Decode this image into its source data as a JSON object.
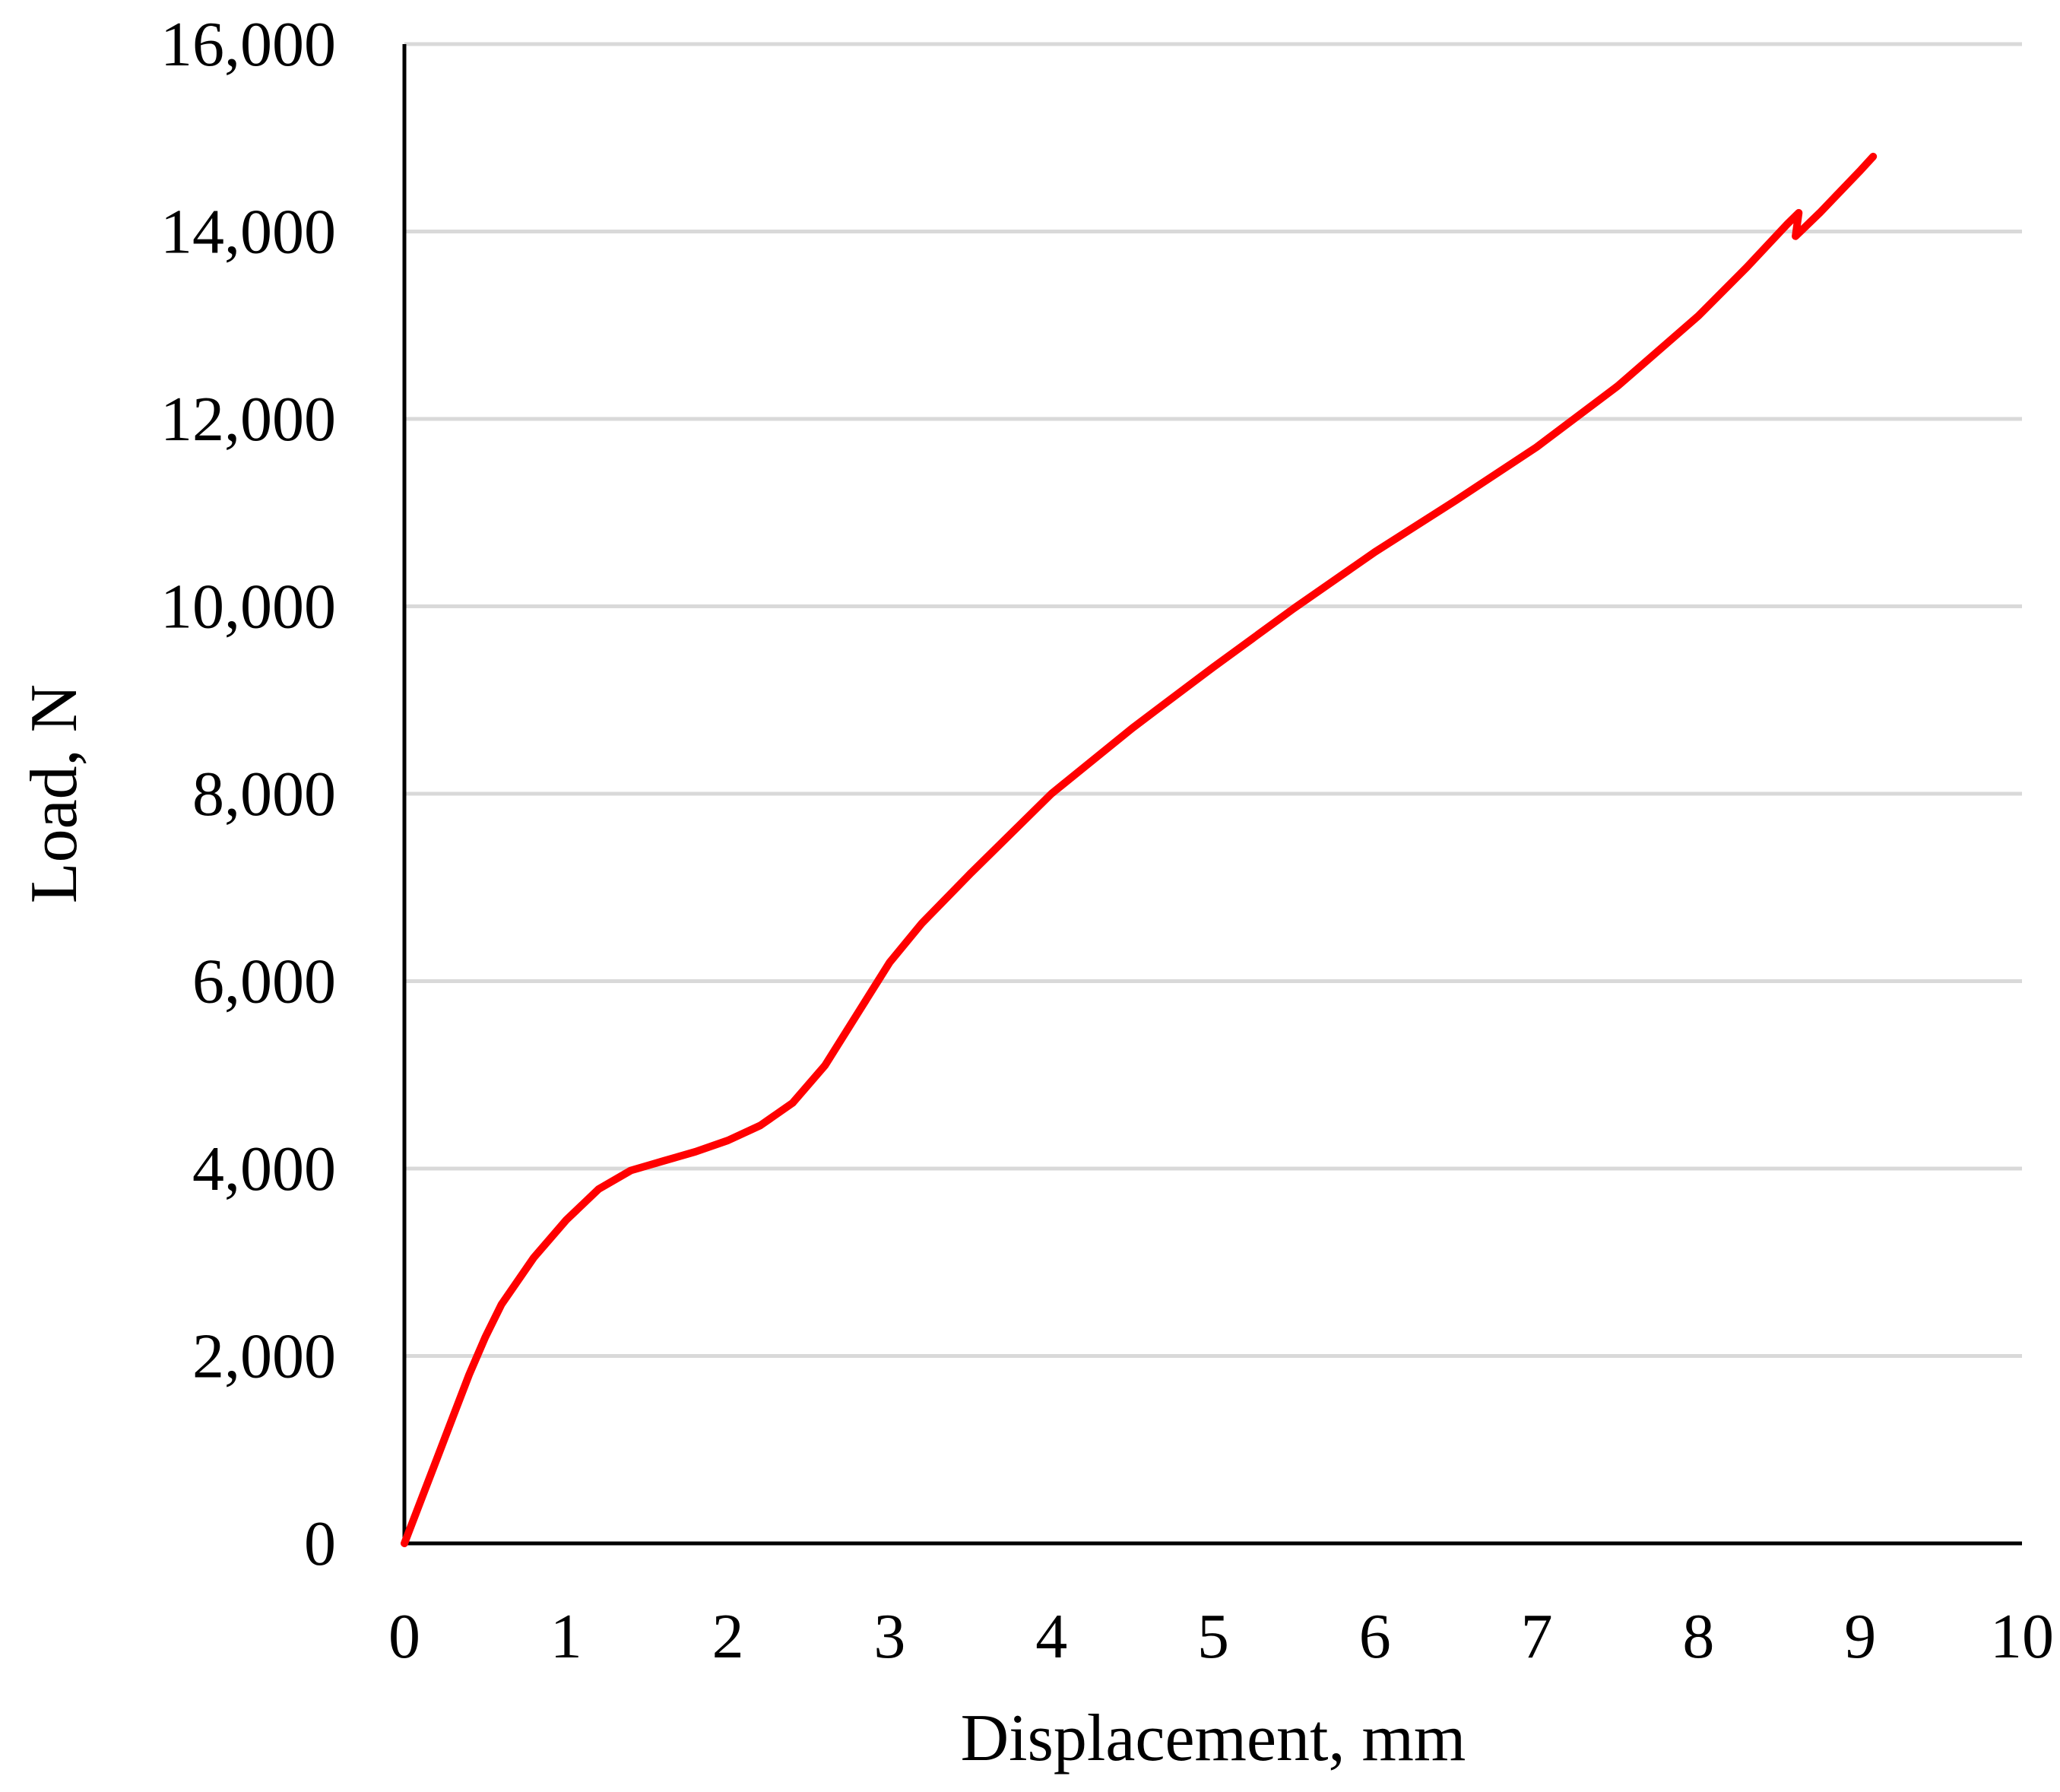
{
  "chart_data": {
    "type": "line",
    "title": "",
    "xlabel": "Displacement, mm",
    "ylabel": "Load, N",
    "xlim": [
      0,
      10
    ],
    "ylim": [
      0,
      16000
    ],
    "x_ticks": [
      "0",
      "1",
      "2",
      "3",
      "4",
      "5",
      "6",
      "7",
      "8",
      "9",
      "10"
    ],
    "y_ticks": [
      "0",
      "2,000",
      "4,000",
      "6,000",
      "8,000",
      "10,000",
      "12,000",
      "14,000",
      "16,000"
    ],
    "x_tick_values": [
      0,
      1,
      2,
      3,
      4,
      5,
      6,
      7,
      8,
      9,
      10
    ],
    "y_tick_values": [
      0,
      2000,
      4000,
      6000,
      8000,
      10000,
      12000,
      14000,
      16000
    ],
    "grid": "horizontal",
    "legend": "none",
    "colors": {
      "line": "#ff0000",
      "grid": "#d9d9d9",
      "axis": "#000000"
    },
    "series": [
      {
        "x": [
          0,
          0.1,
          0.2,
          0.3,
          0.4,
          0.5,
          0.6,
          0.8,
          1.0,
          1.2,
          1.4,
          1.6,
          1.8,
          2.0,
          2.2,
          2.4,
          2.6,
          2.8,
          3.0,
          3.2,
          3.5,
          4.0,
          4.5,
          5.0,
          5.5,
          6.0,
          6.5,
          7.0,
          7.5,
          8.0,
          8.3,
          8.55,
          8.62,
          8.6,
          8.75,
          9.0,
          9.08
        ],
        "y": [
          0,
          450,
          900,
          1350,
          1800,
          2200,
          2550,
          3050,
          3450,
          3780,
          3980,
          4080,
          4180,
          4300,
          4460,
          4700,
          5100,
          5650,
          6200,
          6620,
          7150,
          8000,
          8700,
          9350,
          9980,
          10580,
          11130,
          11700,
          12350,
          13100,
          13620,
          14080,
          14200,
          13950,
          14200,
          14650,
          14800
        ]
      }
    ]
  }
}
